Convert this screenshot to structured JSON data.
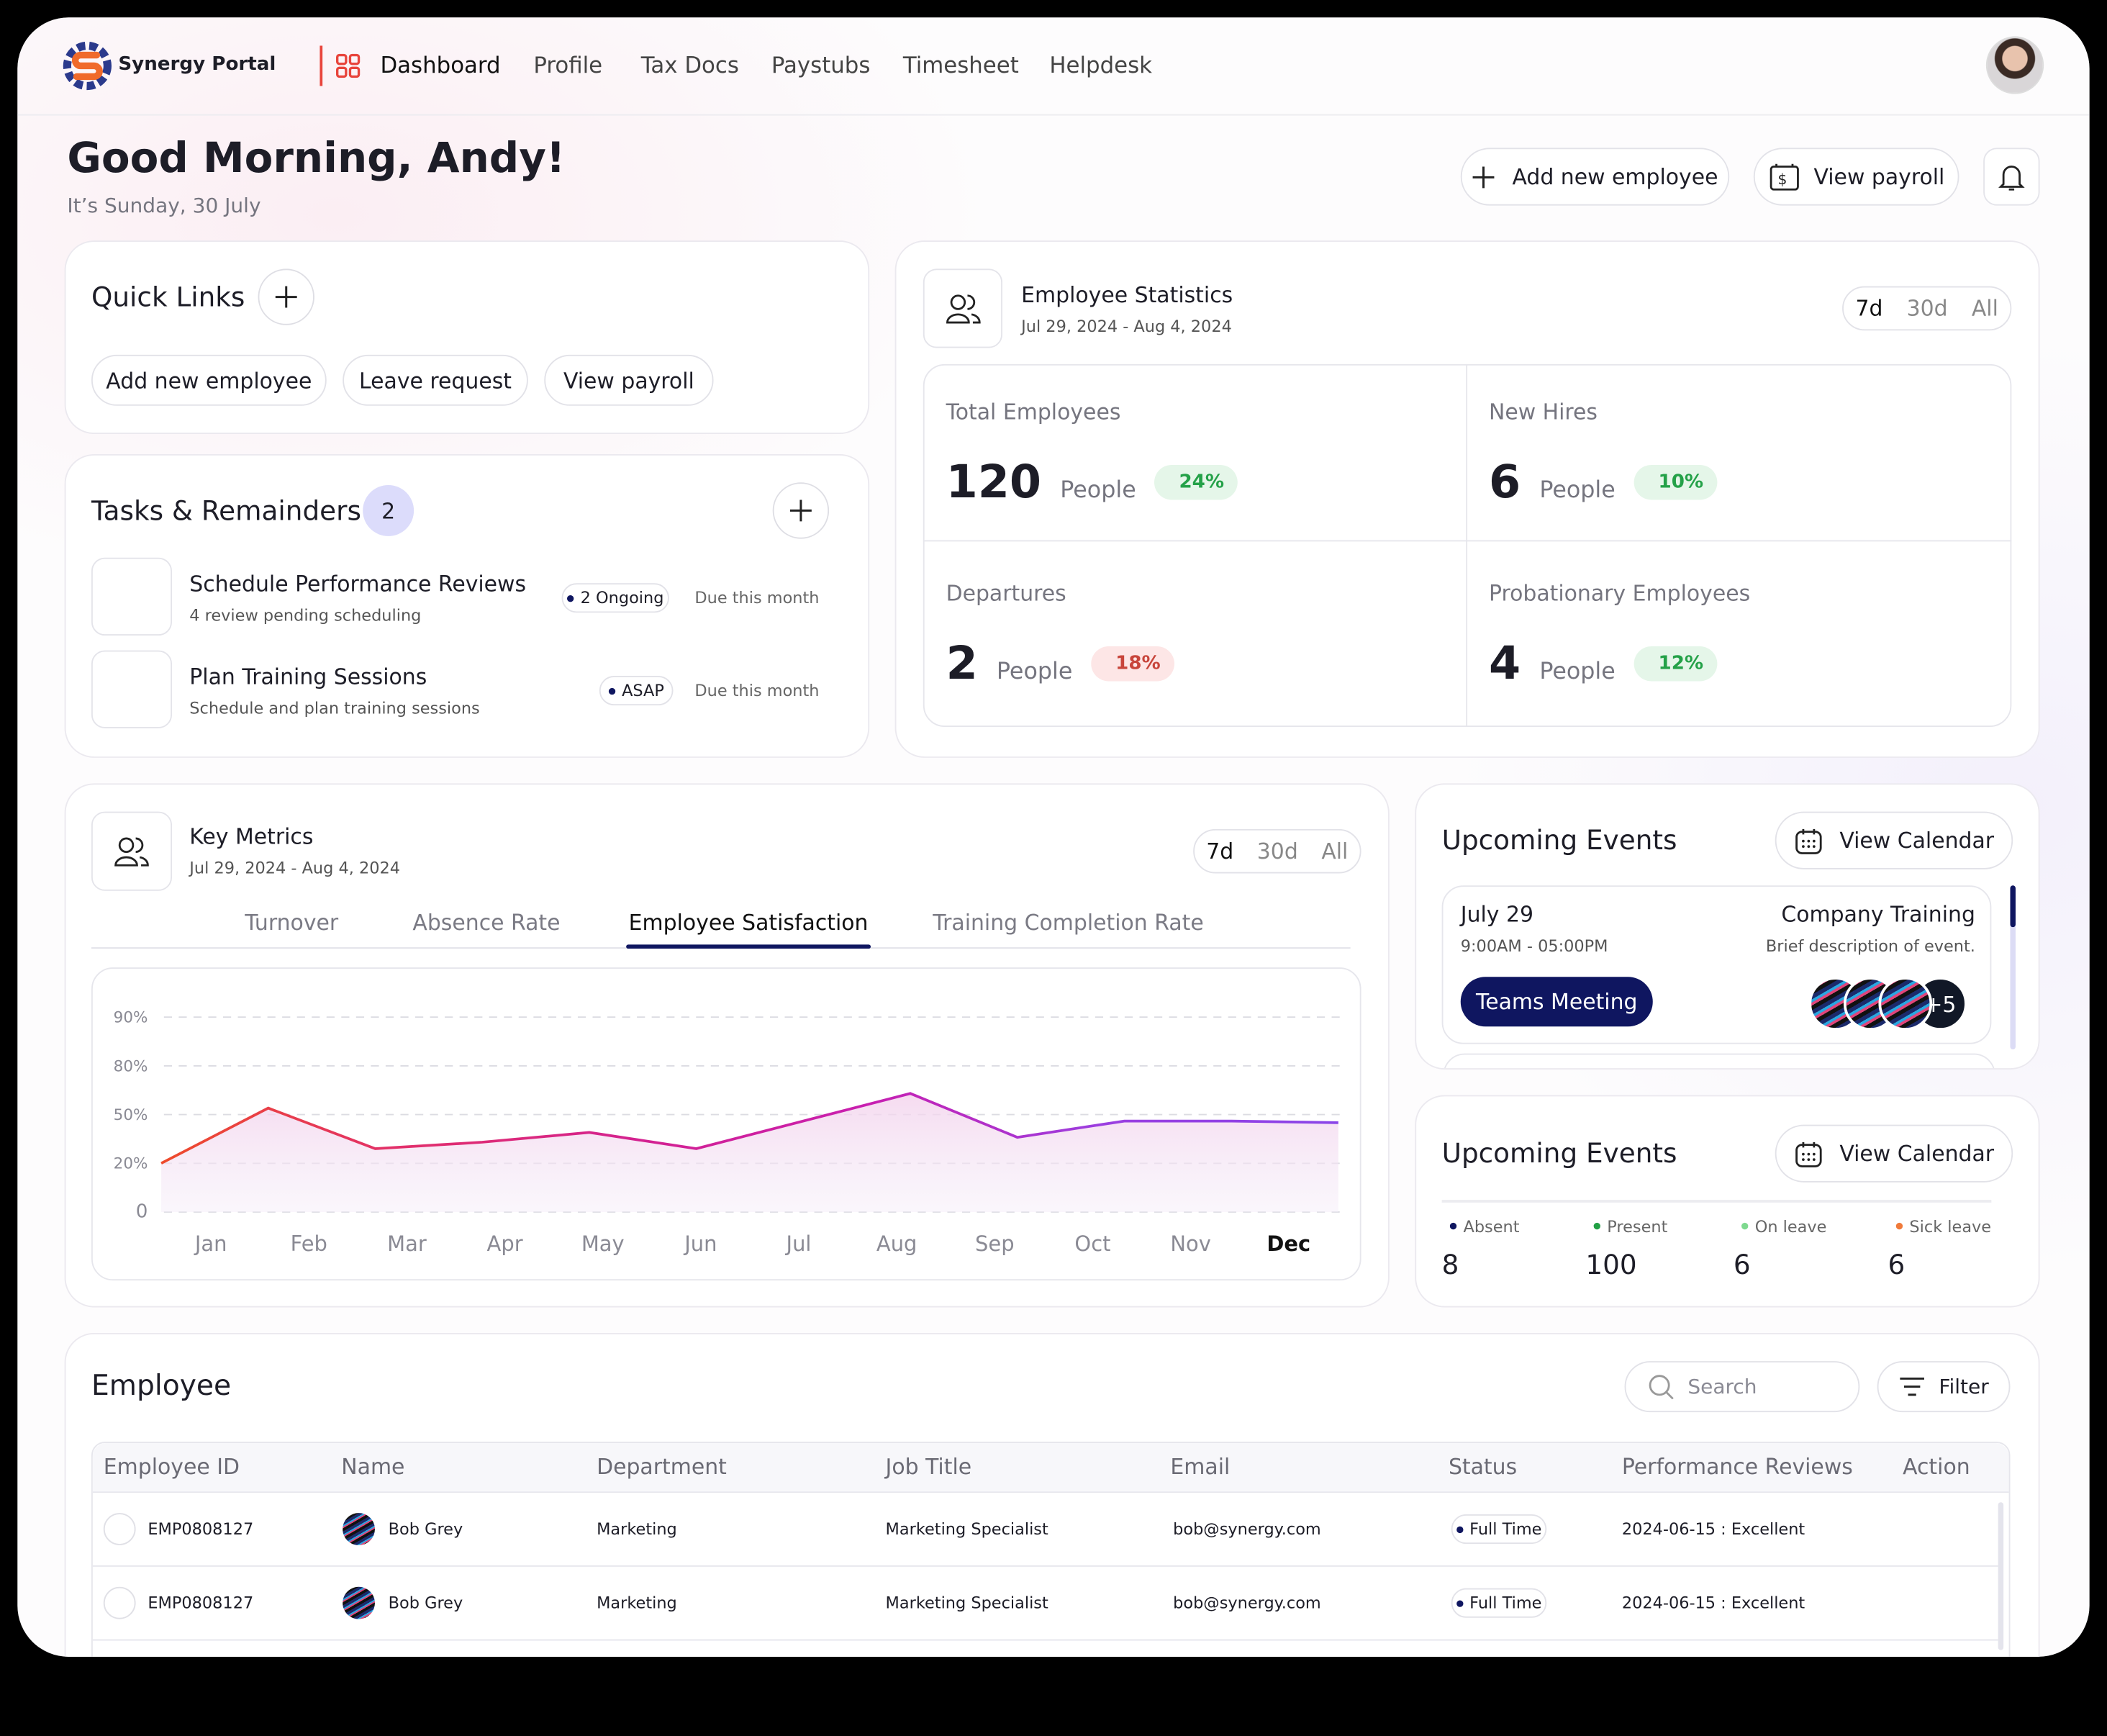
{
  "nav": {
    "brand": "Synergy Portal",
    "items": [
      "Dashboard",
      "Profile",
      "Tax Docs",
      "Paystubs",
      "Timesheet",
      "Helpdesk"
    ]
  },
  "header": {
    "greeting": "Good Morning, Andy!",
    "date": "It’s Sunday, 30 July",
    "buttons": [
      "Add new employee",
      "View payroll"
    ]
  },
  "quick_links": {
    "title": "Quick Links",
    "links": [
      "Add new employee",
      "Leave request",
      "View payroll"
    ]
  },
  "tasks": {
    "title": "Tasks & Remainders",
    "count": 2,
    "items": [
      {
        "title": "Schedule Performance Reviews",
        "subtitle": "4 review pending scheduling",
        "tag": "2 Ongoing",
        "due": "Due this month"
      },
      {
        "title": "Plan Training Sessions",
        "subtitle": "Schedule and plan training sessions",
        "tag": "ASAP",
        "due": "Due this month"
      }
    ]
  },
  "employee_stats": {
    "title": "Employee Statistics",
    "date_range": "Jul 29, 2024 - Aug 4, 2024",
    "ranges": [
      "7d",
      "30d",
      "All"
    ],
    "cards": [
      {
        "label": "Total Employees",
        "value": 120,
        "unit": "People",
        "change": "24%",
        "direction": "up"
      },
      {
        "label": "New Hires",
        "value": 6,
        "unit": "People",
        "change": "10%",
        "direction": "up"
      },
      {
        "label": "Departures",
        "value": 2,
        "unit": "People",
        "change": "18%",
        "direction": "down"
      },
      {
        "label": "Probationary Employees",
        "value": 4,
        "unit": "People",
        "change": "12%",
        "direction": "up"
      }
    ]
  },
  "key_metrics": {
    "title": "Key Metrics",
    "date_range": "Jul 29, 2024 - Aug 4, 2024",
    "ranges": [
      "7d",
      "30d",
      "All"
    ],
    "tabs": [
      "Turnover",
      "Absence Rate",
      "Employee Satisfaction",
      "Training Completion Rate"
    ],
    "active_tab": 2
  },
  "chart_data": {
    "type": "line",
    "categories": [
      "Jan",
      "Feb",
      "Mar",
      "Apr",
      "May",
      "Jun",
      "Jul",
      "Aug",
      "Sep",
      "Oct",
      "Nov",
      "Dec"
    ],
    "active_category": 11,
    "series": [
      {
        "name": "Employee Satisfaction",
        "colors": [
          "#ee4b2b",
          "#e2306a",
          "#d4228f",
          "#c81fb0",
          "#9b3fe0",
          "#8a44e8"
        ],
        "values": [
          20,
          54,
          29,
          33,
          39,
          29,
          46,
          63,
          36,
          46,
          46,
          45
        ]
      }
    ],
    "ylim": [
      0,
      90
    ],
    "yticks": [
      0,
      {
        "value": 20,
        "label": "20%"
      },
      {
        "value": 50,
        "label": "50%"
      },
      {
        "value": 80,
        "label": "80%"
      },
      {
        "value": 90,
        "label": "90%"
      }
    ],
    "grid": true
  },
  "events": {
    "title": "Upcoming Events",
    "button": "View Calendar",
    "event": {
      "date": "July 29",
      "time": "9:00AM - 05:00PM",
      "name": "Teams Meeting",
      "title": "Company Training",
      "description": "Brief description of event.",
      "more": "+5"
    }
  },
  "attendance": {
    "title": "Upcoming Events",
    "button": "View Calendar",
    "stats": [
      {
        "label": "Absent",
        "value": 8,
        "color": "#0f1660"
      },
      {
        "label": "Present",
        "value": 100,
        "color": "#22a045"
      },
      {
        "label": "On leave",
        "value": 6,
        "color": "#7ed98f"
      },
      {
        "label": "Sick leave",
        "value": 6,
        "color": "#f07a3a"
      }
    ]
  },
  "employee_table": {
    "title": "Employee",
    "search": "Search",
    "filter": "Filter",
    "columns": [
      "Employee ID",
      "Name",
      "Department",
      "Job Title",
      "Email",
      "Status",
      "Performance Reviews",
      "Action"
    ],
    "rows": [
      [
        "EMP0808127",
        "Bob Grey",
        "Marketing",
        "Marketing Specialist",
        "bob@synergy.com",
        "Full Time",
        "2024-06-15 : Excellent"
      ],
      [
        "EMP0808127",
        "Bob Grey",
        "Marketing",
        "Marketing Specialist",
        "bob@synergy.com",
        "Full Time",
        "2024-06-15 : Excellent"
      ]
    ]
  }
}
